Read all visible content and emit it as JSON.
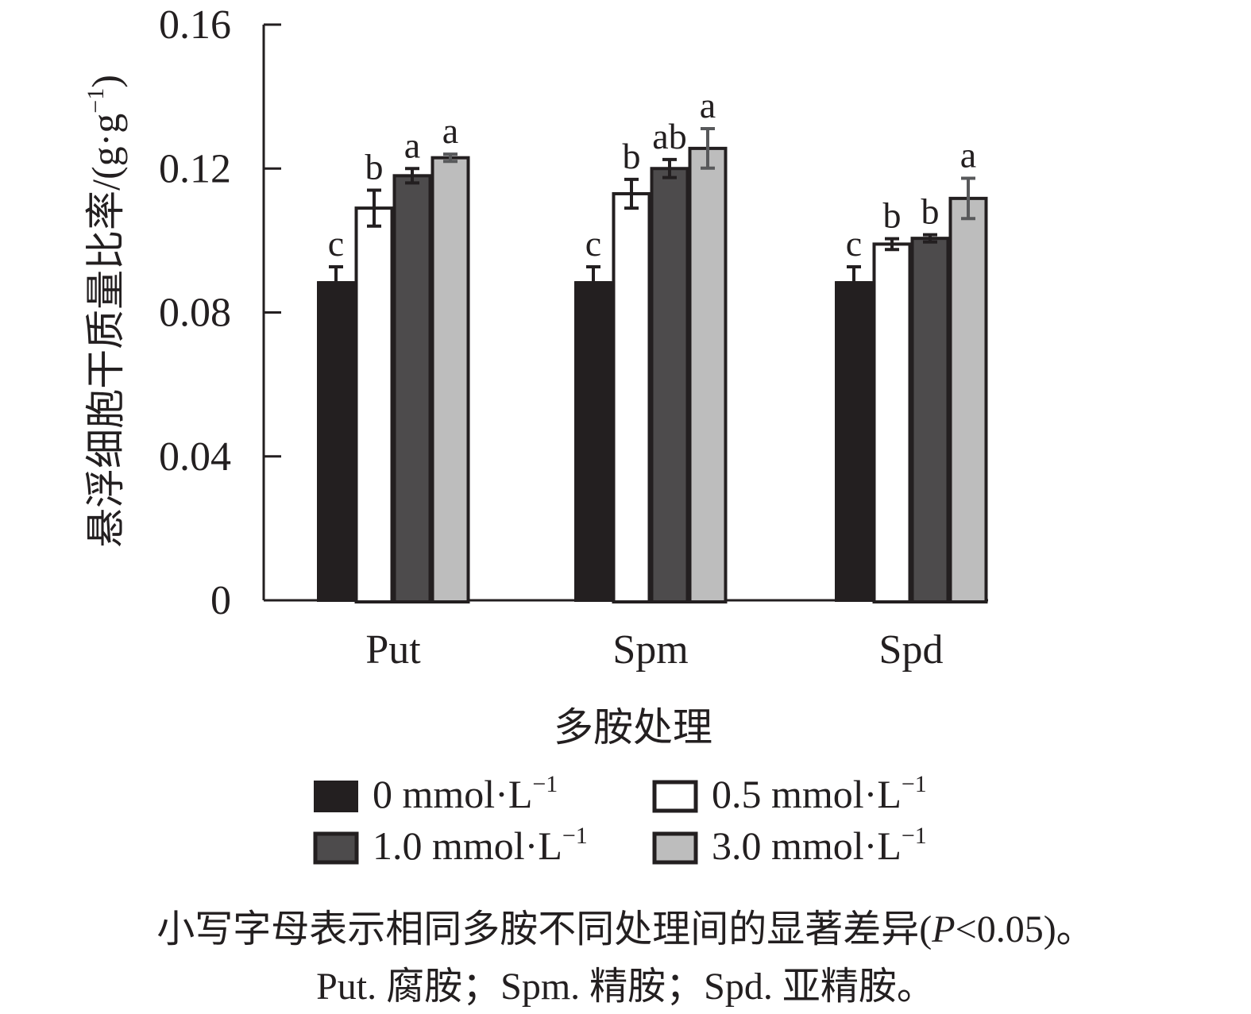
{
  "chart_data": {
    "type": "bar",
    "title": "",
    "xlabel": "多胺处理",
    "ylabel": "悬浮细胞干质量比率/(g·g⁻¹)",
    "ylabel_main": "悬浮细胞干质量比率/(g·g",
    "ylabel_sup": "−1",
    "ylabel_close": ")",
    "ylim": [
      0,
      0.16
    ],
    "yticks": [
      0,
      0.04,
      0.08,
      0.12,
      0.16
    ],
    "ytick_labels": [
      "0",
      "0.04",
      "0.08",
      "0.12",
      "0.16"
    ],
    "grid": false,
    "categories": [
      "Put",
      "Spm",
      "Spd"
    ],
    "series": [
      {
        "name": "0 mmol·L⁻¹",
        "label_main": "0 mmol·L",
        "label_sup": "−1",
        "color": "#231f20",
        "values": [
          0.0887,
          0.0887,
          0.0887
        ],
        "errors": [
          0.004,
          0.004,
          0.004
        ],
        "letters": [
          "c",
          "c",
          "c"
        ]
      },
      {
        "name": "0.5 mmol·L⁻¹",
        "label_main": "0.5 mmol·L",
        "label_sup": "−1",
        "color": "#ffffff",
        "values": [
          0.109,
          0.113,
          0.099
        ],
        "errors": [
          0.005,
          0.004,
          0.0015
        ],
        "letters": [
          "b",
          "b",
          "b"
        ]
      },
      {
        "name": "1.0 mmol·L⁻¹",
        "label_main": "1.0 mmol·L",
        "label_sup": "−1",
        "color": "#4d4b4c",
        "values": [
          0.118,
          0.12,
          0.1006
        ],
        "errors": [
          0.002,
          0.0025,
          0.001
        ],
        "letters": [
          "a",
          "ab",
          "b"
        ]
      },
      {
        "name": "3.0 mmol·L⁻¹",
        "label_main": "3.0 mmol·L",
        "label_sup": "−1",
        "color": "#bdbdbd",
        "values": [
          0.123,
          0.1256,
          0.1117
        ],
        "errors": [
          0.001,
          0.0055,
          0.0056
        ],
        "letters": [
          "a",
          "a",
          "a"
        ]
      }
    ],
    "legend_placement": "bottom-center",
    "colors": {
      "axis": "#231f20",
      "error_bar_light": "#58595b"
    }
  },
  "captions": {
    "line1": "小写字母表示相同多胺不同处理间的显著差异(P<0.05)。",
    "line1_pre": "小写字母表示相同多胺不同处理间的显著差异(",
    "line1_p": "P",
    "line1_post": "<0.05)。",
    "line2": "Put. 腐胺；Spm. 精胺；Spd. 亚精胺。"
  }
}
